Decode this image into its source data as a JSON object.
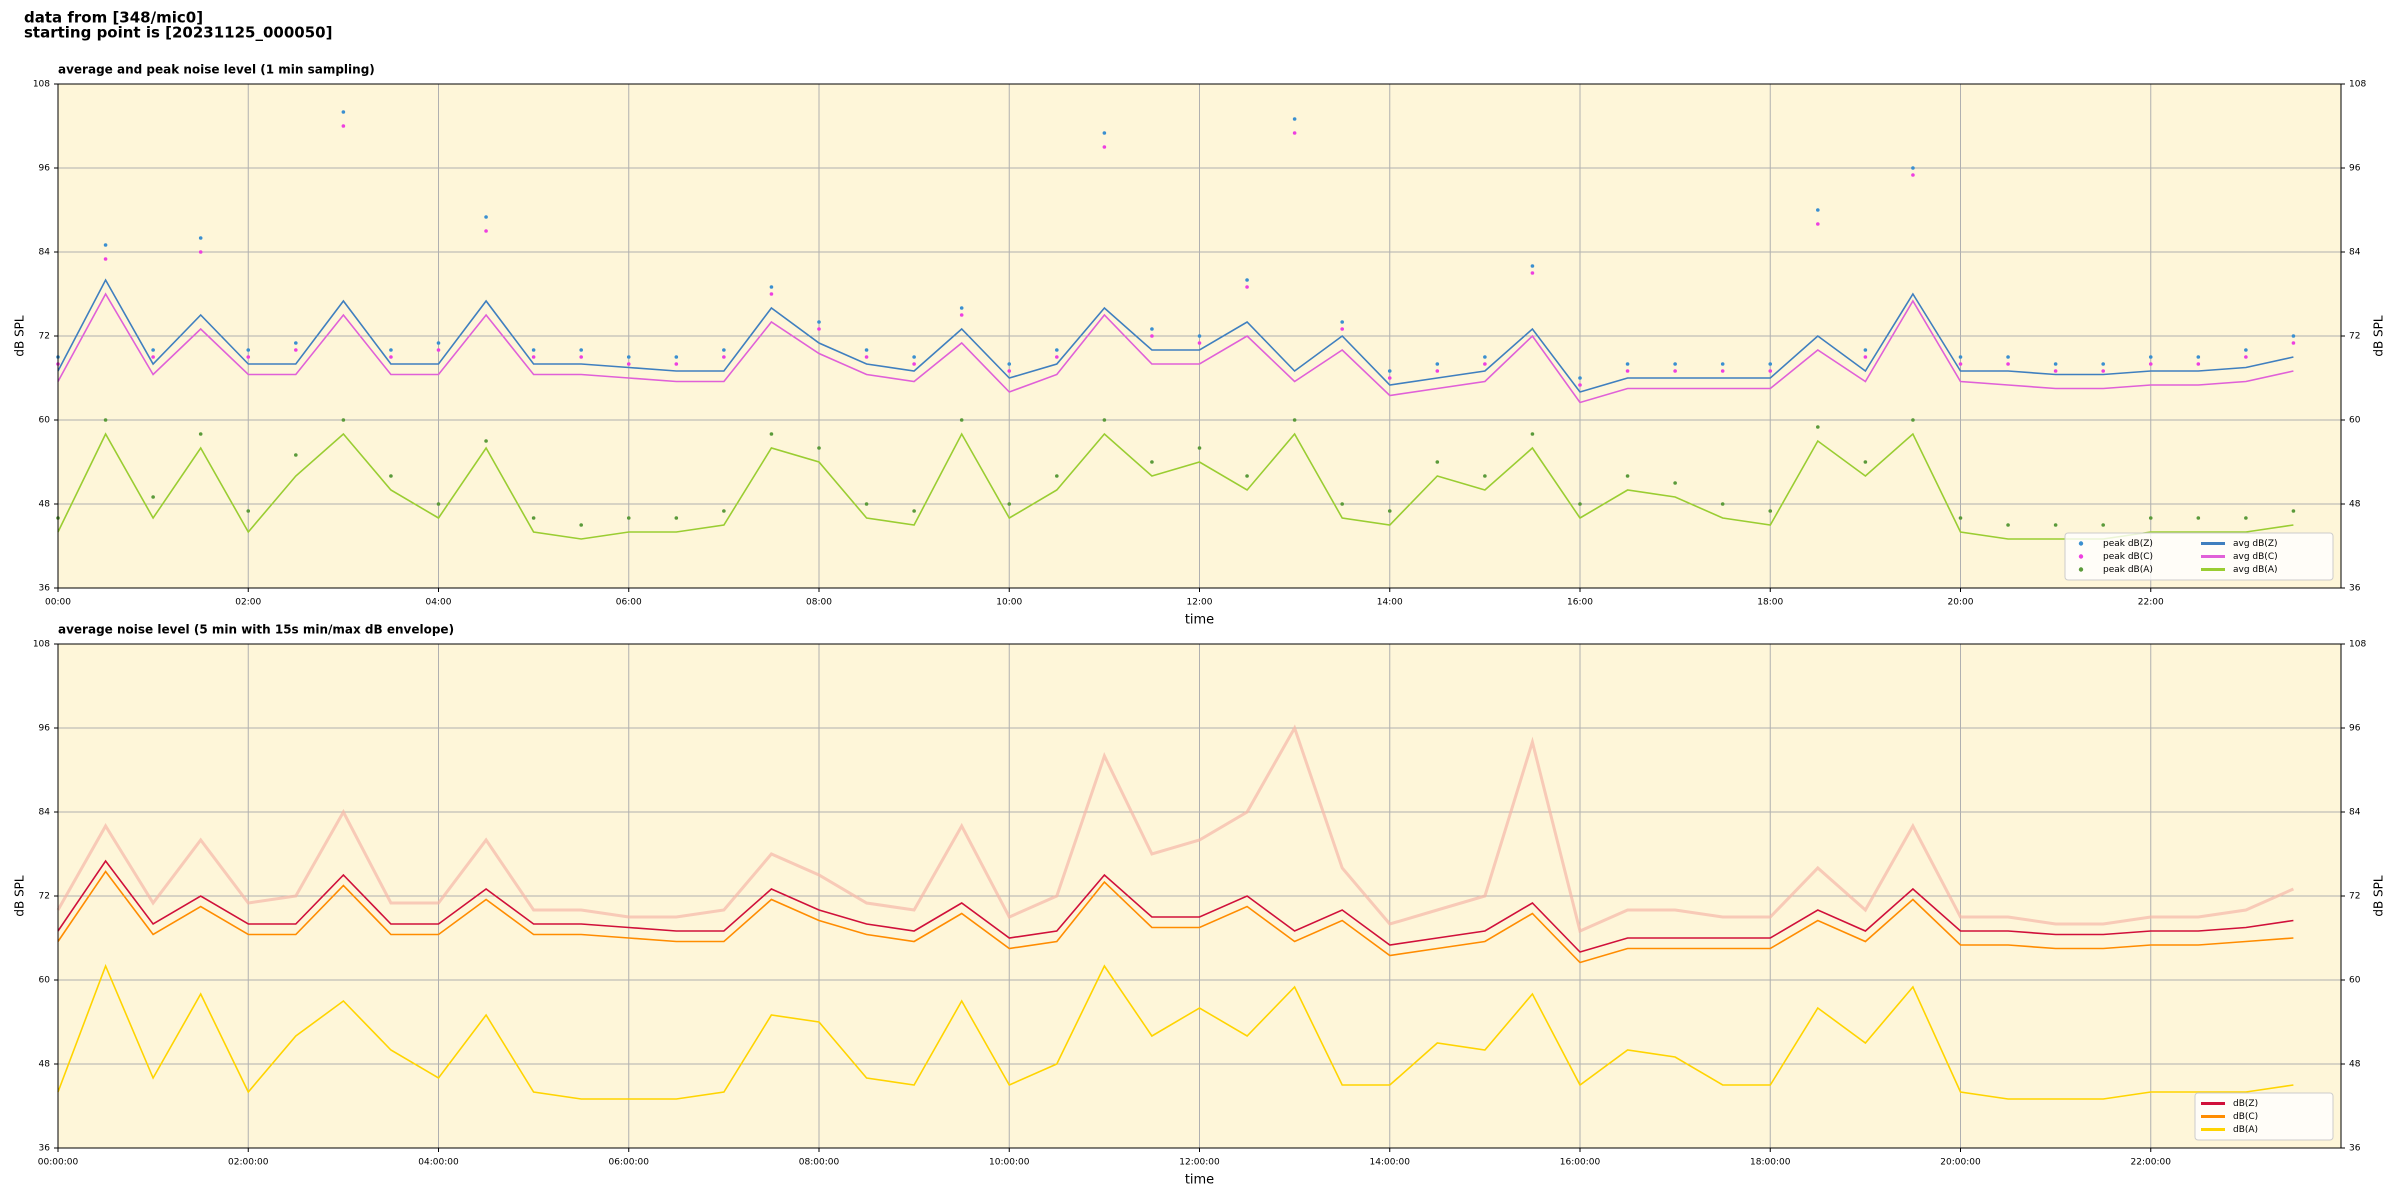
{
  "header": [
    "data from [348/mic0]",
    "starting point is [20231125_000050]"
  ],
  "chart_data": [
    {
      "type": "line",
      "title": "average and peak noise level (1 min sampling)",
      "x_label": "time",
      "y_label": "dB SPL",
      "x": [
        "00:00",
        "00:30",
        "01:00",
        "01:30",
        "02:00",
        "02:30",
        "03:00",
        "03:30",
        "04:00",
        "04:30",
        "05:00",
        "05:30",
        "06:00",
        "06:30",
        "07:00",
        "07:30",
        "08:00",
        "08:30",
        "09:00",
        "09:30",
        "10:00",
        "10:30",
        "11:00",
        "11:30",
        "12:00",
        "12:30",
        "13:00",
        "13:30",
        "14:00",
        "14:30",
        "15:00",
        "15:30",
        "16:00",
        "16:30",
        "17:00",
        "17:30",
        "18:00",
        "18:30",
        "19:00",
        "19:30",
        "20:00",
        "20:30",
        "21:00",
        "21:30",
        "22:00",
        "22:30",
        "23:00",
        "23:30"
      ],
      "xlim": [
        "00:00",
        "24:00"
      ],
      "xticks": [
        "00:00",
        "02:00",
        "04:00",
        "06:00",
        "08:00",
        "10:00",
        "12:00",
        "14:00",
        "16:00",
        "18:00",
        "20:00",
        "22:00"
      ],
      "ylim": [
        36,
        108
      ],
      "yticks": [
        36,
        48,
        60,
        72,
        84,
        96,
        108
      ],
      "grid": true,
      "legend": "lower right",
      "background": "#fef6d9",
      "series": [
        {
          "name": "peak dB(Z)",
          "kind": "scatter",
          "color": "#3a8fd0",
          "values": [
            69,
            85,
            70,
            86,
            70,
            71,
            104,
            70,
            71,
            89,
            70,
            70,
            69,
            69,
            70,
            79,
            74,
            70,
            69,
            76,
            68,
            70,
            101,
            73,
            72,
            80,
            103,
            74,
            67,
            68,
            69,
            82,
            66,
            68,
            68,
            68,
            68,
            90,
            70,
            96,
            69,
            69,
            68,
            68,
            69,
            69,
            70,
            72
          ]
        },
        {
          "name": "peak dB(C)",
          "kind": "scatter",
          "color": "#ee3fe0",
          "values": [
            68,
            83,
            69,
            84,
            69,
            70,
            102,
            69,
            70,
            87,
            69,
            69,
            68,
            68,
            69,
            78,
            73,
            69,
            68,
            75,
            67,
            69,
            99,
            72,
            71,
            79,
            101,
            73,
            66,
            67,
            68,
            81,
            65,
            67,
            67,
            67,
            67,
            88,
            69,
            95,
            68,
            68,
            67,
            67,
            68,
            68,
            69,
            71
          ]
        },
        {
          "name": "peak dB(A)",
          "kind": "scatter",
          "color": "#5a9a3a",
          "values": [
            46,
            60,
            49,
            58,
            47,
            55,
            60,
            52,
            48,
            57,
            46,
            45,
            46,
            46,
            47,
            58,
            56,
            48,
            47,
            60,
            48,
            52,
            60,
            54,
            56,
            52,
            60,
            48,
            47,
            54,
            52,
            58,
            48,
            52,
            51,
            48,
            47,
            59,
            54,
            60,
            46,
            45,
            45,
            45,
            46,
            46,
            46,
            47
          ]
        },
        {
          "name": "avg dB(Z)",
          "kind": "line",
          "color": "#3f7fbf",
          "values": [
            67,
            80,
            68,
            75,
            68,
            68,
            77,
            68,
            68,
            77,
            68,
            68,
            67.5,
            67,
            67,
            76,
            71,
            68,
            67,
            73,
            66,
            68,
            76,
            70,
            70,
            74,
            67,
            72,
            65,
            66,
            67,
            73,
            64,
            66,
            66,
            66,
            66,
            72,
            67,
            78,
            67,
            67,
            66.5,
            66.5,
            67,
            67,
            67.5,
            69
          ]
        },
        {
          "name": "avg dB(C)",
          "kind": "line",
          "color": "#e060d8",
          "values": [
            65.5,
            78,
            66.5,
            73,
            66.5,
            66.5,
            75,
            66.5,
            66.5,
            75,
            66.5,
            66.5,
            66,
            65.5,
            65.5,
            74,
            69.5,
            66.5,
            65.5,
            71,
            64,
            66.5,
            75,
            68,
            68,
            72,
            65.5,
            70,
            63.5,
            64.5,
            65.5,
            72,
            62.5,
            64.5,
            64.5,
            64.5,
            64.5,
            70,
            65.5,
            77,
            65.5,
            65,
            64.5,
            64.5,
            65,
            65,
            65.5,
            67
          ]
        },
        {
          "name": "avg dB(A)",
          "kind": "line",
          "color": "#9acd32",
          "values": [
            44,
            58,
            46,
            56,
            44,
            52,
            58,
            50,
            46,
            56,
            44,
            43,
            44,
            44,
            45,
            56,
            54,
            46,
            45,
            58,
            46,
            50,
            58,
            52,
            54,
            50,
            58,
            46,
            45,
            52,
            50,
            56,
            46,
            50,
            49,
            46,
            45,
            57,
            52,
            58,
            44,
            43,
            43,
            43,
            44,
            44,
            44,
            45
          ]
        }
      ]
    },
    {
      "type": "line",
      "title": "average noise level (5 min with 15s min/max dB envelope)",
      "x_label": "time",
      "y_label": "dB SPL",
      "x": [
        "00:00:00",
        "00:30:00",
        "01:00:00",
        "01:30:00",
        "02:00:00",
        "02:30:00",
        "03:00:00",
        "03:30:00",
        "04:00:00",
        "04:30:00",
        "05:00:00",
        "05:30:00",
        "06:00:00",
        "06:30:00",
        "07:00:00",
        "07:30:00",
        "08:00:00",
        "08:30:00",
        "09:00:00",
        "09:30:00",
        "10:00:00",
        "10:30:00",
        "11:00:00",
        "11:30:00",
        "12:00:00",
        "12:30:00",
        "13:00:00",
        "13:30:00",
        "14:00:00",
        "14:30:00",
        "15:00:00",
        "15:30:00",
        "16:00:00",
        "16:30:00",
        "17:00:00",
        "17:30:00",
        "18:00:00",
        "18:30:00",
        "19:00:00",
        "19:30:00",
        "20:00:00",
        "20:30:00",
        "21:00:00",
        "21:30:00",
        "22:00:00",
        "22:30:00",
        "23:00:00",
        "23:30:00"
      ],
      "xlim": [
        "00:00:00",
        "24:00:00"
      ],
      "xticks": [
        "00:00:00",
        "02:00:00",
        "04:00:00",
        "06:00:00",
        "08:00:00",
        "10:00:00",
        "12:00:00",
        "14:00:00",
        "16:00:00",
        "18:00:00",
        "20:00:00",
        "22:00:00"
      ],
      "ylim": [
        36,
        108
      ],
      "yticks": [
        36,
        48,
        60,
        72,
        84,
        96,
        108
      ],
      "grid": true,
      "legend": "lower right",
      "background": "#fef6d9",
      "envelope": {
        "color": "#f5b8a8",
        "values": [
          70,
          82,
          71,
          80,
          71,
          72,
          84,
          71,
          71,
          80,
          70,
          70,
          69,
          69,
          70,
          78,
          75,
          71,
          70,
          82,
          69,
          72,
          92,
          78,
          80,
          84,
          96,
          76,
          68,
          70,
          72,
          94,
          67,
          70,
          70,
          69,
          69,
          76,
          70,
          82,
          69,
          69,
          68,
          68,
          69,
          69,
          70,
          73
        ]
      },
      "series": [
        {
          "name": "dB(Z)",
          "kind": "line",
          "color": "#d0103a",
          "values": [
            67,
            77,
            68,
            72,
            68,
            68,
            75,
            68,
            68,
            73,
            68,
            68,
            67.5,
            67,
            67,
            73,
            70,
            68,
            67,
            71,
            66,
            67,
            75,
            69,
            69,
            72,
            67,
            70,
            65,
            66,
            67,
            71,
            64,
            66,
            66,
            66,
            66,
            70,
            67,
            73,
            67,
            67,
            66.5,
            66.5,
            67,
            67,
            67.5,
            68.5
          ]
        },
        {
          "name": "dB(C)",
          "kind": "line",
          "color": "#ff8c00",
          "values": [
            65.5,
            75.5,
            66.5,
            70.5,
            66.5,
            66.5,
            73.5,
            66.5,
            66.5,
            71.5,
            66.5,
            66.5,
            66,
            65.5,
            65.5,
            71.5,
            68.5,
            66.5,
            65.5,
            69.5,
            64.5,
            65.5,
            74,
            67.5,
            67.5,
            70.5,
            65.5,
            68.5,
            63.5,
            64.5,
            65.5,
            69.5,
            62.5,
            64.5,
            64.5,
            64.5,
            64.5,
            68.5,
            65.5,
            71.5,
            65,
            65,
            64.5,
            64.5,
            65,
            65,
            65.5,
            66
          ]
        },
        {
          "name": "dB(A)",
          "kind": "line",
          "color": "#ffd400",
          "values": [
            44,
            62,
            46,
            58,
            44,
            52,
            57,
            50,
            46,
            55,
            44,
            43,
            43,
            43,
            44,
            55,
            54,
            46,
            45,
            57,
            45,
            48,
            62,
            52,
            56,
            52,
            59,
            45,
            45,
            51,
            50,
            58,
            45,
            50,
            49,
            45,
            45,
            56,
            51,
            59,
            44,
            43,
            43,
            43,
            44,
            44,
            44,
            45
          ]
        }
      ]
    }
  ]
}
